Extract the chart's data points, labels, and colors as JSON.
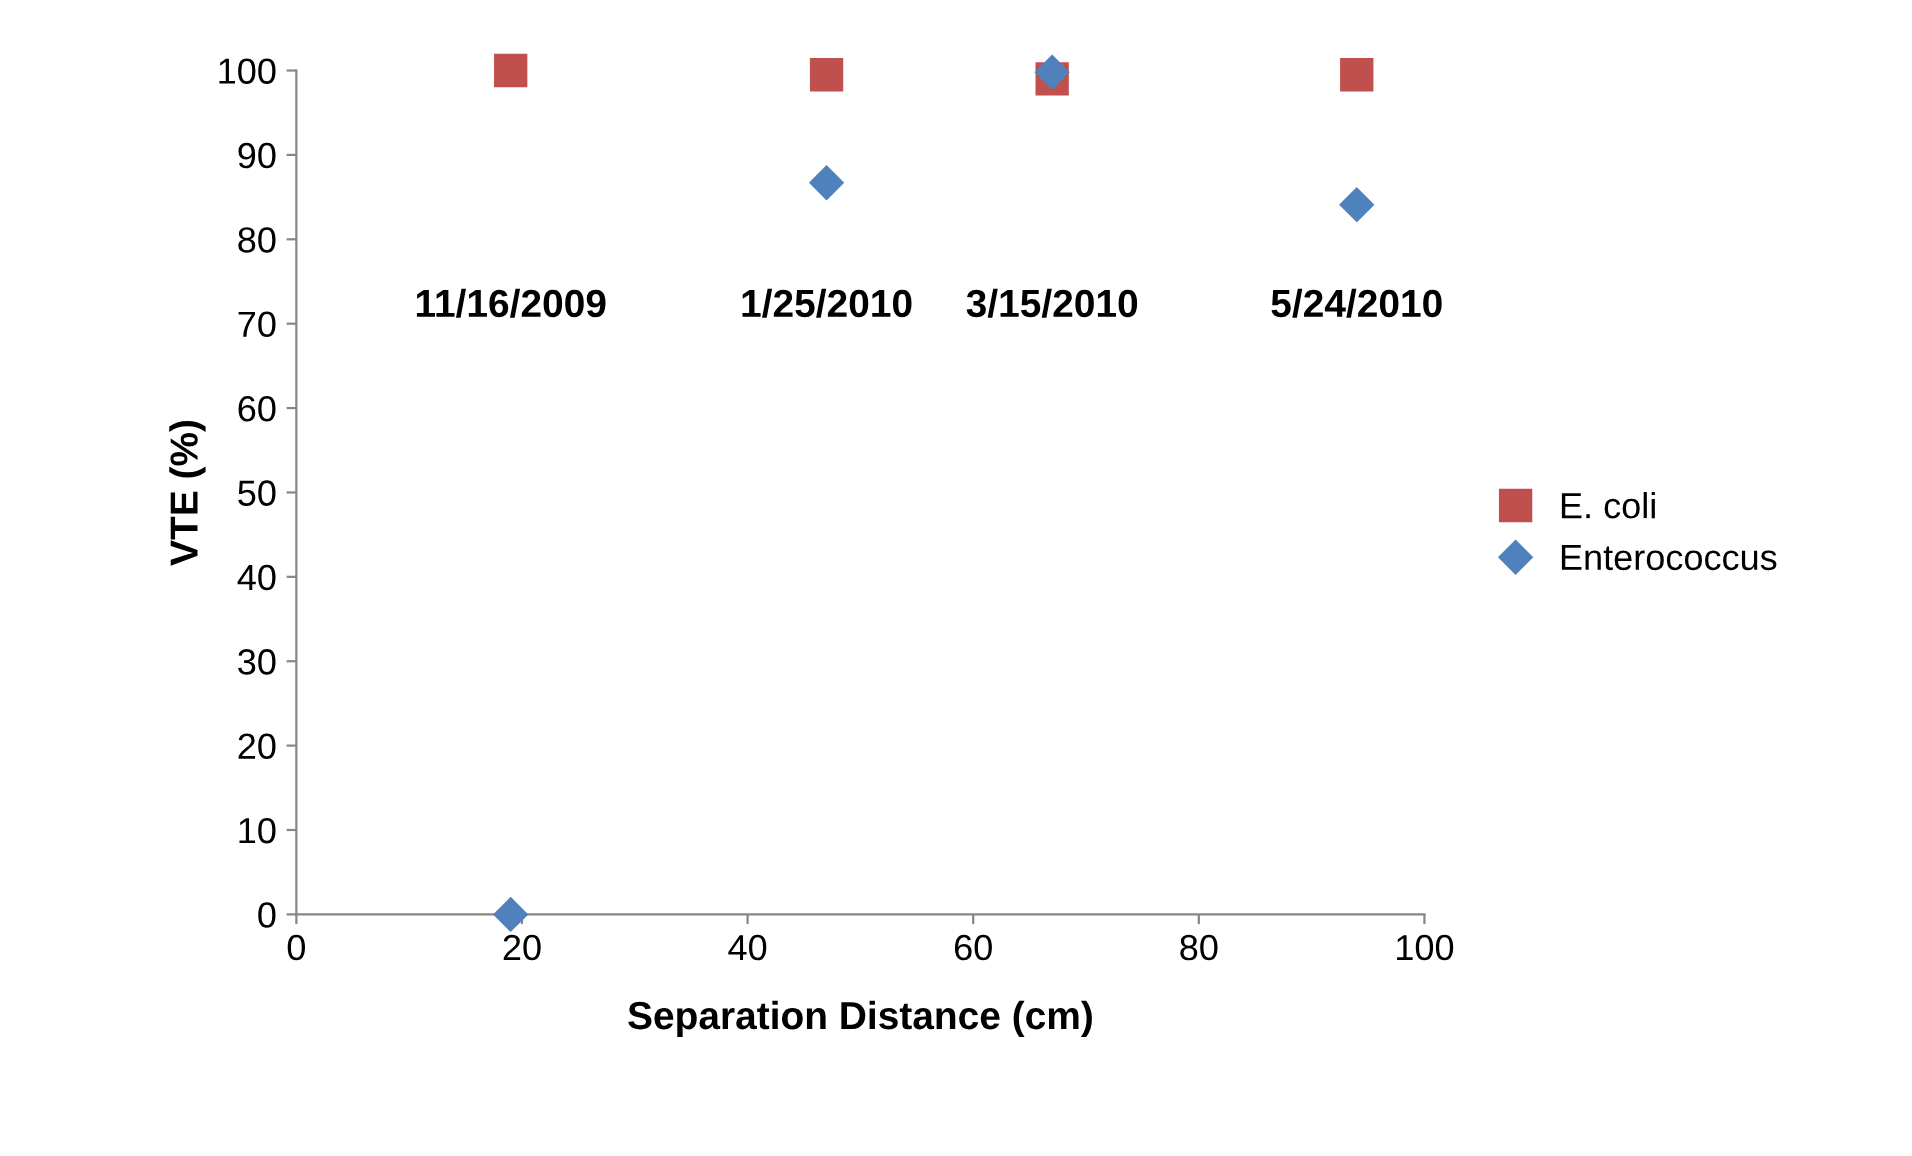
{
  "chart_data": {
    "type": "scatter",
    "xlabel": "Separation Distance (cm)",
    "ylabel": "VTE (%)",
    "series": [
      {
        "name": "E. coli",
        "color": "#c0504d",
        "marker": "square",
        "x": [
          19,
          47,
          67,
          94
        ],
        "values": [
          100,
          99.5,
          99,
          99.5
        ]
      },
      {
        "name": "Enterococcus",
        "color": "#4f81bd",
        "marker": "diamond",
        "x": [
          19,
          47,
          67,
          94
        ],
        "values": [
          0,
          86.7,
          99.8,
          84.1
        ]
      }
    ],
    "annotations": [
      "11/16/2009",
      "1/25/2010",
      "3/15/2010",
      "5/24/2010"
    ],
    "xlim": [
      0,
      100
    ],
    "xticks": [
      0,
      20,
      40,
      60,
      80,
      100
    ],
    "ylim": [
      0,
      100
    ],
    "yticks": [
      0,
      10,
      20,
      30,
      40,
      50,
      60,
      70,
      80,
      90,
      100
    ],
    "grid": false,
    "legend": "right"
  }
}
